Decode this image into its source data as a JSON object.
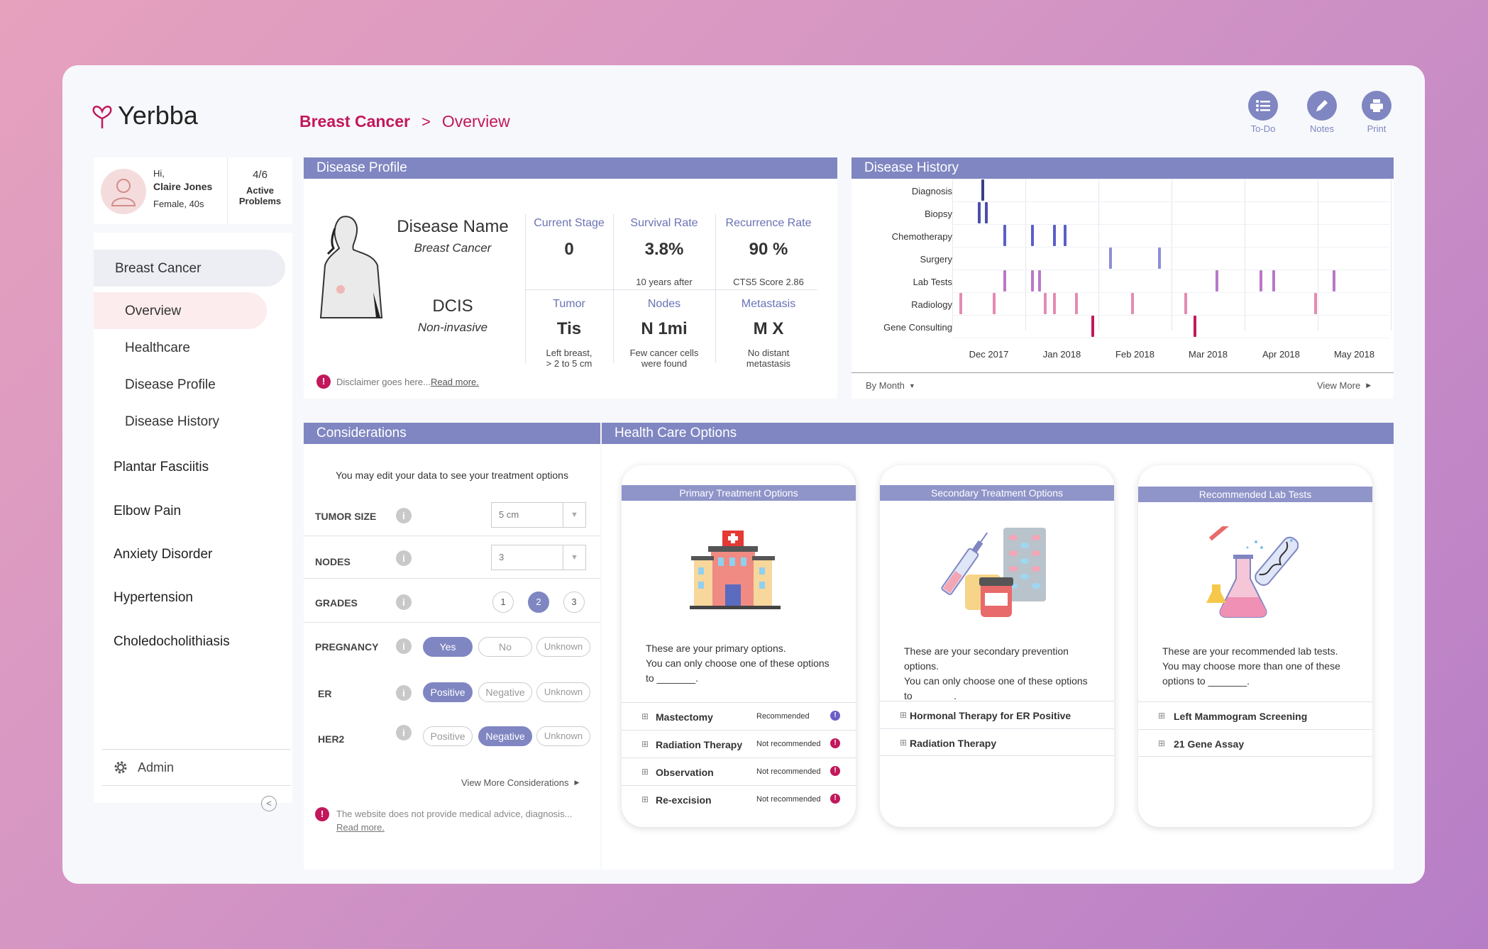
{
  "app": {
    "name": "Yerbba"
  },
  "breadcrumb": {
    "section": "Breast Cancer",
    "sep": ">",
    "page": "Overview"
  },
  "topbar": [
    {
      "label": "To-Do",
      "icon": "list-icon"
    },
    {
      "label": "Notes",
      "icon": "pencil-icon"
    },
    {
      "label": "Print",
      "icon": "printer-icon"
    }
  ],
  "user": {
    "greeting": "Hi,",
    "name": "Claire Jones",
    "demo": "Female, 40s",
    "problems_count": "4/6",
    "problems_label1": "Active",
    "problems_label2": "Problems"
  },
  "sidebar": {
    "active": "Breast Cancer",
    "sub": [
      "Overview",
      "Healthcare",
      "Disease Profile",
      "Disease History"
    ],
    "items": [
      "Plantar Fasciitis",
      "Elbow Pain",
      "Anxiety Disorder",
      "Hypertension",
      "Choledocholithiasis"
    ],
    "admin": "Admin",
    "collapse": "<"
  },
  "profile": {
    "title": "Disease Profile",
    "name_label": "Disease Name",
    "name_value": "Breast Cancer",
    "type_label": "DCIS",
    "type_value": "Non-invasive",
    "metrics": [
      {
        "label": "Current Stage",
        "value": "0",
        "sub": ""
      },
      {
        "label": "Survival Rate",
        "value": "3.8%",
        "sub": "10 years after"
      },
      {
        "label": "Recurrence Rate",
        "value": "90 %",
        "sub": "CTS5 Score 2.86"
      },
      {
        "label": "Tumor",
        "value": "Tis",
        "sub": "Left breast,\n> 2 to 5 cm"
      },
      {
        "label": "Nodes",
        "value": "N 1mi",
        "sub": "Few cancer cells\nwere found"
      },
      {
        "label": "Metastasis",
        "value": "M X",
        "sub": "No distant\nmetastasis"
      }
    ],
    "disclaimer": "Disclaimer goes here...",
    "read_more": "Read more."
  },
  "history": {
    "title": "Disease History",
    "rows": [
      "Diagnosis",
      "Biopsy",
      "Chemotherapy",
      "Surgery",
      "Lab Tests",
      "Radiology",
      "Gene Consulting"
    ],
    "months": [
      "Dec 2017",
      "Jan 2018",
      "Feb 2018",
      "Mar 2018",
      "Apr 2018",
      "May 2018"
    ],
    "events": {
      "Diagnosis": [
        0.4
      ],
      "Biopsy": [
        0.35,
        0.45
      ],
      "Chemotherapy": [
        0.7,
        1.08,
        1.38,
        1.52
      ],
      "Surgery": [
        2.15,
        2.82
      ],
      "Lab Tests": [
        0.7,
        1.08,
        1.17,
        3.6,
        4.2,
        4.38,
        5.2
      ],
      "Radiology": [
        0.1,
        0.55,
        1.25,
        1.38,
        1.68,
        2.45,
        3.17,
        4.95
      ],
      "Gene Consulting": [
        1.9,
        3.3
      ]
    },
    "colors": {
      "Diagnosis": "#3b3f86",
      "Biopsy": "#4a4fa8",
      "Chemotherapy": "#5a5fc8",
      "Surgery": "#8c8ed8",
      "Lab Tests": "#b978c6",
      "Radiology": "#e38bb2",
      "Gene Consulting": "#c2185b"
    },
    "filter": "By Month",
    "view_more": "View More"
  },
  "considerations": {
    "title": "Considerations",
    "intro": "You may edit your data to see your treatment options",
    "tumor_size": {
      "label": "TUMOR SIZE",
      "value": "5 cm"
    },
    "nodes": {
      "label": "NODES",
      "value": "3"
    },
    "grades": {
      "label": "GRADES",
      "options": [
        "1",
        "2",
        "3"
      ],
      "selected": "2"
    },
    "pregnancy": {
      "label": "PREGNANCY",
      "options": [
        "Yes",
        "No",
        "Unknown"
      ],
      "selected": "Yes"
    },
    "er": {
      "label": "ER",
      "options": [
        "Positive",
        "Negative",
        "Unknown"
      ],
      "selected": "Positive"
    },
    "her2": {
      "label": "HER2",
      "options": [
        "Positive",
        "Negative",
        "Unknown"
      ],
      "selected": "Negative"
    },
    "view_more": "View More Considerations",
    "disclaimer": "The website does not provide medical advice, diagnosis...",
    "read_more": "Read more."
  },
  "health_care": {
    "title": "Health Care Options",
    "primary": {
      "header": "Primary Treatment Options",
      "desc1": "These are your primary options.",
      "desc2": "You can only choose one of these options",
      "desc3": "to _______.",
      "items": [
        {
          "name": "Mastectomy",
          "status": "Recommended"
        },
        {
          "name": "Radiation Therapy",
          "status": "Not recommended"
        },
        {
          "name": "Observation",
          "status": "Not recommended"
        },
        {
          "name": "Re-excision",
          "status": "Not recommended"
        }
      ]
    },
    "secondary": {
      "header": "Secondary Treatment Options",
      "desc1": "These are your secondary prevention options.",
      "desc2": "You can only choose one of these options",
      "desc3": "to _______.",
      "items": [
        {
          "name": "Hormonal Therapy for ER Positive"
        },
        {
          "name": "Radiation Therapy"
        }
      ]
    },
    "lab": {
      "header": "Recommended Lab Tests",
      "desc1": "These are your recommended lab tests.",
      "desc2": "You may choose more than one of these",
      "desc3": "options to _______.",
      "items": [
        {
          "name": "Left Mammogram Screening"
        },
        {
          "name": "21 Gene Assay"
        }
      ]
    }
  }
}
